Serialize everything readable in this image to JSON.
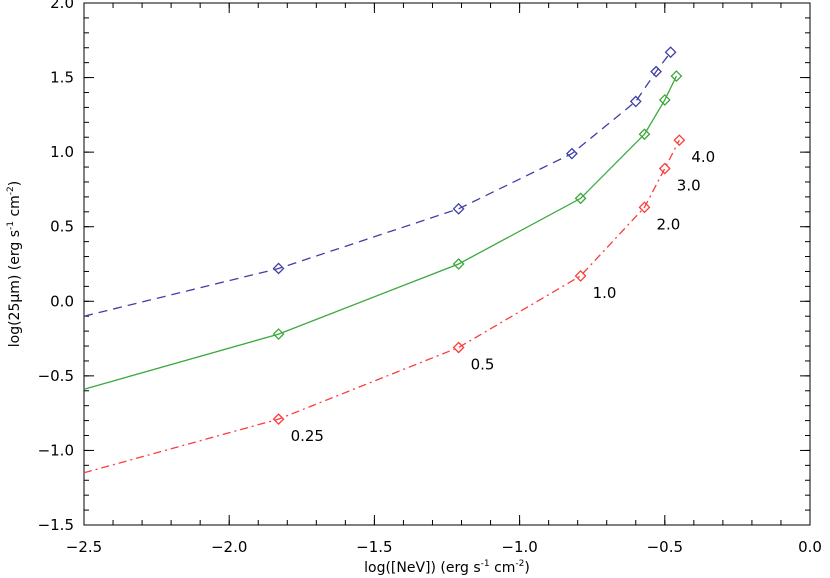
{
  "chart_data": {
    "type": "line",
    "title": "",
    "xlabel_main": "log([NeV])  (erg s",
    "xlabel_exp1": "-1",
    "xlabel_mid": " cm",
    "xlabel_exp2": "-2",
    "xlabel_end": ")",
    "ylabel_main": "log(25μm)  (erg s",
    "ylabel_exp1": "-1",
    "ylabel_mid": " cm",
    "ylabel_exp2": "-2",
    "ylabel_end": ")",
    "xlim": [
      -2.5,
      0.0
    ],
    "ylim": [
      -1.5,
      2.0
    ],
    "xticks": [
      -2.5,
      -2.0,
      -1.5,
      -1.0,
      -0.5,
      0.0
    ],
    "xtick_labels": [
      "−2.5",
      "−2.0",
      "−1.5",
      "−1.0",
      "−0.5",
      "0.0"
    ],
    "yticks": [
      -1.5,
      -1.0,
      -0.5,
      0.0,
      0.5,
      1.0,
      1.5,
      2.0
    ],
    "ytick_labels": [
      "−1.5",
      "−1.0",
      "−0.5",
      "0.0",
      "0.5",
      "1.0",
      "1.5",
      "2.0"
    ],
    "series": [
      {
        "name": "blue",
        "color": "#3f3fa8",
        "dash": "dashed",
        "x": [
          -2.5,
          -1.83,
          -1.21,
          -0.82,
          -0.6,
          -0.53,
          -0.48
        ],
        "y": [
          -0.1,
          0.22,
          0.62,
          0.99,
          1.34,
          1.54,
          1.67
        ],
        "markers": [
          false,
          true,
          true,
          true,
          true,
          true,
          true
        ]
      },
      {
        "name": "green",
        "color": "#3ca83c",
        "dash": "solid",
        "x": [
          -2.5,
          -1.83,
          -1.21,
          -0.79,
          -0.57,
          -0.5,
          -0.46
        ],
        "y": [
          -0.59,
          -0.22,
          0.25,
          0.69,
          1.12,
          1.35,
          1.51
        ],
        "markers": [
          false,
          true,
          true,
          true,
          true,
          true,
          true
        ]
      },
      {
        "name": "red",
        "color": "#ff3b3b",
        "dash": "dashdot",
        "x": [
          -2.5,
          -1.83,
          -1.21,
          -0.79,
          -0.57,
          -0.5,
          -0.45
        ],
        "y": [
          -1.15,
          -0.79,
          -0.31,
          0.17,
          0.63,
          0.89,
          1.08
        ],
        "markers": [
          false,
          true,
          true,
          true,
          true,
          true,
          true
        ]
      }
    ],
    "annotations": [
      {
        "text": "0.25",
        "x": -1.83,
        "y": -0.79
      },
      {
        "text": "0.5",
        "x": -1.21,
        "y": -0.31
      },
      {
        "text": "1.0",
        "x": -0.79,
        "y": 0.17
      },
      {
        "text": "2.0",
        "x": -0.57,
        "y": 0.63
      },
      {
        "text": "3.0",
        "x": -0.5,
        "y": 0.89
      },
      {
        "text": "4.0",
        "x": -0.45,
        "y": 1.08
      }
    ]
  }
}
